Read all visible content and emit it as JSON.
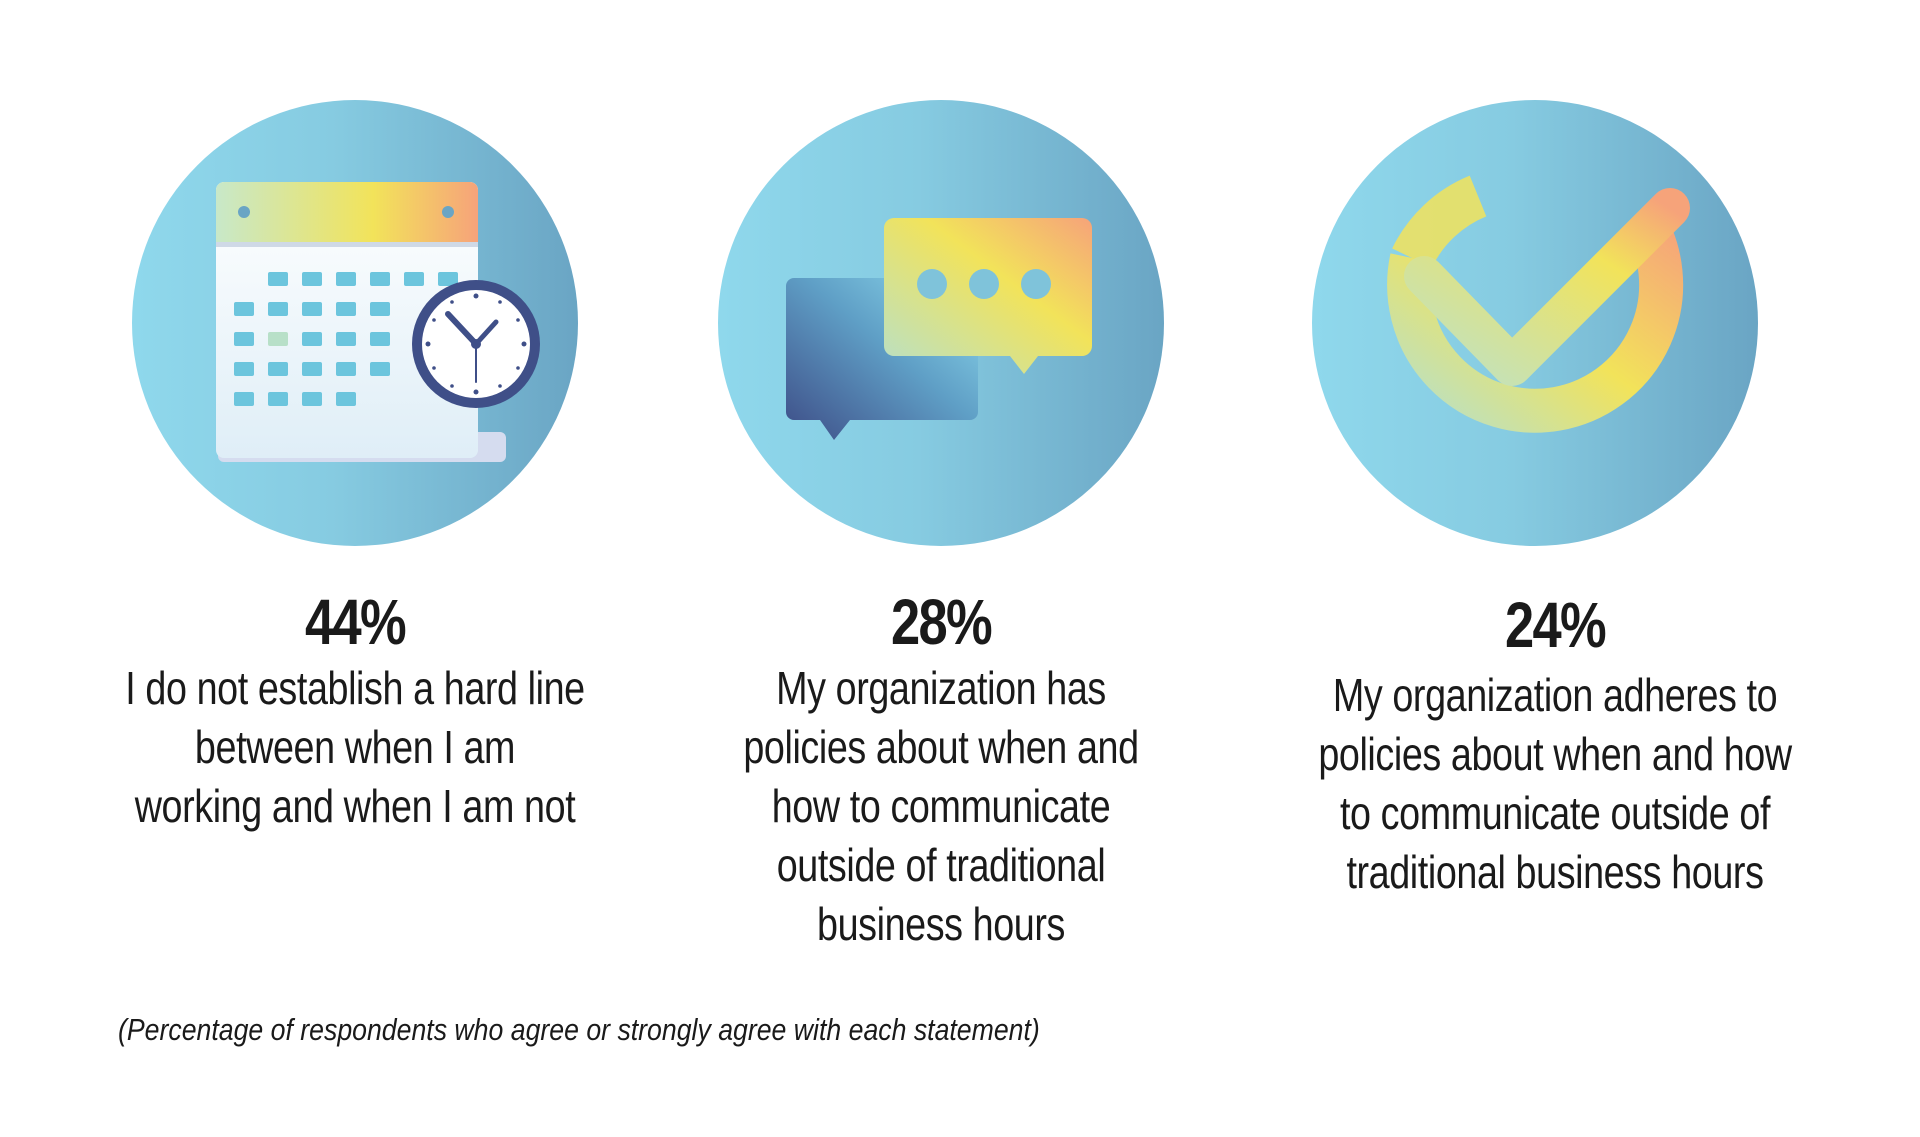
{
  "stats": [
    {
      "value": "44%",
      "icon": "calendar-clock-icon",
      "lines": [
        "I do not establish a hard line",
        "between when I am",
        "working and when I am not"
      ]
    },
    {
      "value": "28%",
      "icon": "chat-bubbles-icon",
      "lines": [
        "My organization has",
        "policies about when and",
        "how to communicate",
        "outside of traditional",
        "business hours"
      ]
    },
    {
      "value": "24%",
      "icon": "check-circle-icon",
      "lines": [
        "My organization adheres to",
        "policies about when and how",
        "to communicate outside of",
        "traditional business hours"
      ]
    }
  ],
  "footnote": "(Percentage of respondents who agree or strongly agree with each statement)",
  "colors": {
    "circle_light": "#8fd8ec",
    "circle_dark": "#6aa5c4",
    "accent_yellow": "#f2e35a",
    "accent_orange": "#f6a37a",
    "accent_green": "#b8e0c8",
    "clock_navy": "#3f4f88"
  }
}
